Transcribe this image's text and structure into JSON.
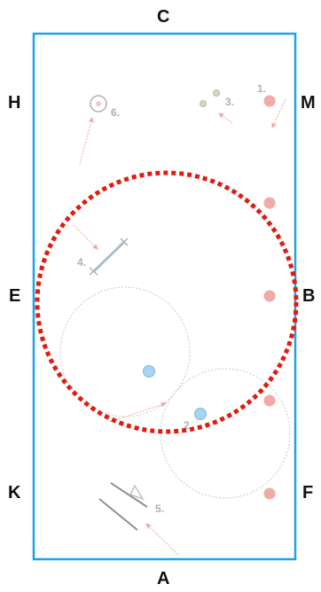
{
  "arena": {
    "letters": {
      "top": "C",
      "bottom": "A",
      "left_upper": "H",
      "left_middle": "E",
      "left_lower": "K",
      "right_upper": "M",
      "right_middle": "B",
      "right_lower": "F"
    },
    "border_color": "#1ea2e8"
  },
  "steps": {
    "s1": "1.",
    "s2": "2.",
    "s3": "3.",
    "s4": "4.",
    "s5": "5.",
    "s6": "6."
  },
  "colors": {
    "highlight_circle": "#e01b10",
    "marker_fill": "#f2aaa6",
    "ball_fill": "#a8d4f2",
    "faded_icon": "#b0b0b0",
    "guide_arrow": "#f0a8a8"
  }
}
